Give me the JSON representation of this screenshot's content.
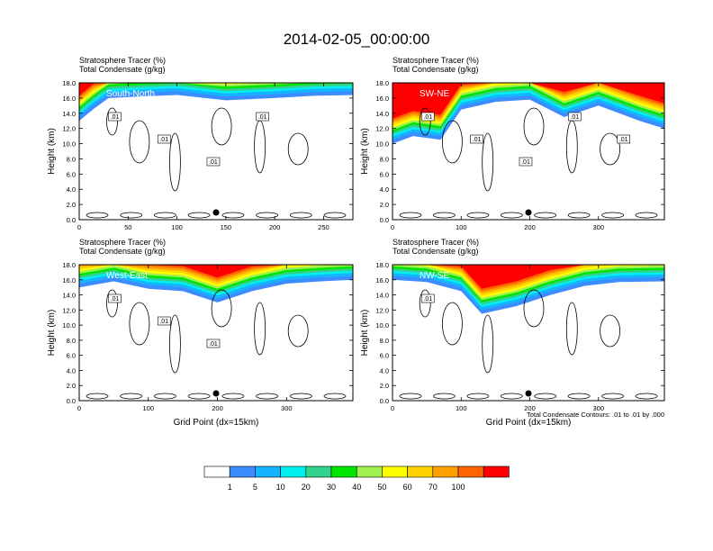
{
  "title": "2014-02-05_00:00:00",
  "chart_data": {
    "type": "heatmap",
    "panels": [
      {
        "name": "South-North",
        "header": [
          "Stratosphere Tracer   (%)",
          "Total Condensate   (g/kg)"
        ],
        "ylabel": "Height (km)",
        "xlabel": "",
        "xlim": [
          0,
          280
        ],
        "ylim": [
          0,
          18
        ],
        "xticks": [
          "0",
          "50",
          "100",
          "150",
          "200",
          "250"
        ],
        "yticks": [
          "0.0",
          "2.0",
          "4.0",
          "6.0",
          "8.0",
          "10.0",
          "12.0",
          "14.0",
          "16.0",
          "18.0"
        ],
        "contour_labels": [
          ".01",
          ".01",
          ".01",
          ".01"
        ],
        "marker_x": 140,
        "tracer_bands_km": {
          "x": [
            0,
            15,
            30,
            60,
            100,
            150,
            200,
            240,
            280
          ],
          "base": [
            13.0,
            14.6,
            16.0,
            16.2,
            16.4,
            15.7,
            16.0,
            16.3,
            16.4
          ],
          "top": [
            18.0,
            18.0,
            18.0,
            18.0,
            18.0,
            18.0,
            18.0,
            18.0,
            18.0
          ]
        }
      },
      {
        "name": "SW-NE",
        "header": [
          "Stratosphere Tracer   (%)",
          "Total Condensate   (g/kg)"
        ],
        "ylabel": "Height (km)",
        "xlabel": "",
        "xlim": [
          0,
          396
        ],
        "ylim": [
          0,
          18
        ],
        "xticks": [
          "0",
          "100",
          "200",
          "300"
        ],
        "yticks": [
          "0.0",
          "2.0",
          "4.0",
          "6.0",
          "8.0",
          "10.0",
          "12.0",
          "14.0",
          "16.0",
          "18.0"
        ],
        "contour_labels": [
          ".01",
          ".01",
          ".01",
          ".01",
          ".01"
        ],
        "marker_x": 198,
        "tracer_bands_km": {
          "x": [
            0,
            30,
            70,
            100,
            150,
            200,
            250,
            300,
            360,
            396
          ],
          "base": [
            10.0,
            11.0,
            10.5,
            14.5,
            15.5,
            15.8,
            13.5,
            15.0,
            13.0,
            12.0
          ],
          "top": [
            18.0,
            18.0,
            18.0,
            18.0,
            18.0,
            18.0,
            18.0,
            18.0,
            18.0,
            18.0
          ]
        }
      },
      {
        "name": "West-East",
        "header": [
          "Stratosphere Tracer   (%)",
          "Total Condensate   (g/kg)"
        ],
        "ylabel": "Height (km)",
        "xlabel": "Grid Point (dx=15km)",
        "xlim": [
          0,
          396
        ],
        "ylim": [
          0,
          18
        ],
        "xticks": [
          "0",
          "100",
          "200",
          "300"
        ],
        "yticks": [
          "0.0",
          "2.0",
          "4.0",
          "6.0",
          "8.0",
          "10.0",
          "12.0",
          "14.0",
          "16.0",
          "18.0"
        ],
        "contour_labels": [
          ".01",
          ".01",
          ".01"
        ],
        "marker_x": 198,
        "tracer_bands_km": {
          "x": [
            0,
            50,
            100,
            150,
            200,
            250,
            300,
            350,
            396
          ],
          "base": [
            15.0,
            15.8,
            14.8,
            14.5,
            13.0,
            14.5,
            15.5,
            15.8,
            16.0
          ],
          "top": [
            18.0,
            18.0,
            18.0,
            18.0,
            18.0,
            18.0,
            18.0,
            18.0,
            18.0
          ]
        }
      },
      {
        "name": "NW-SE",
        "header": [
          "Stratosphere Tracer   (%)",
          "Total Condensate   (g/kg)"
        ],
        "ylabel": "Height (km)",
        "xlabel": "Grid Point (dx=15km)",
        "xlim": [
          0,
          396
        ],
        "ylim": [
          0,
          18
        ],
        "xticks": [
          "0",
          "100",
          "200",
          "300"
        ],
        "yticks": [
          "0.0",
          "2.0",
          "4.0",
          "6.0",
          "8.0",
          "10.0",
          "12.0",
          "14.0",
          "16.0",
          "18.0"
        ],
        "contour_labels": [
          ".01"
        ],
        "marker_x": 198,
        "footnote": "Total Condensate Contours: .01 to .01 by .000",
        "tracer_bands_km": {
          "x": [
            0,
            50,
            100,
            130,
            180,
            230,
            280,
            330,
            396
          ],
          "base": [
            16.0,
            15.7,
            14.5,
            11.5,
            12.5,
            14.0,
            15.2,
            15.7,
            15.8
          ],
          "top": [
            18.0,
            18.0,
            18.0,
            18.0,
            18.0,
            18.0,
            18.0,
            18.0,
            18.0
          ]
        }
      }
    ],
    "colorbar": {
      "labels": [
        "1",
        "5",
        "10",
        "20",
        "30",
        "40",
        "50",
        "60",
        "70",
        "100"
      ],
      "colors": [
        "#ffffff",
        "#3c8cff",
        "#14b4ff",
        "#00f0f0",
        "#32d28c",
        "#00e600",
        "#a0f050",
        "#ffff00",
        "#ffd200",
        "#ffa000",
        "#ff6400",
        "#ff0000"
      ]
    }
  }
}
